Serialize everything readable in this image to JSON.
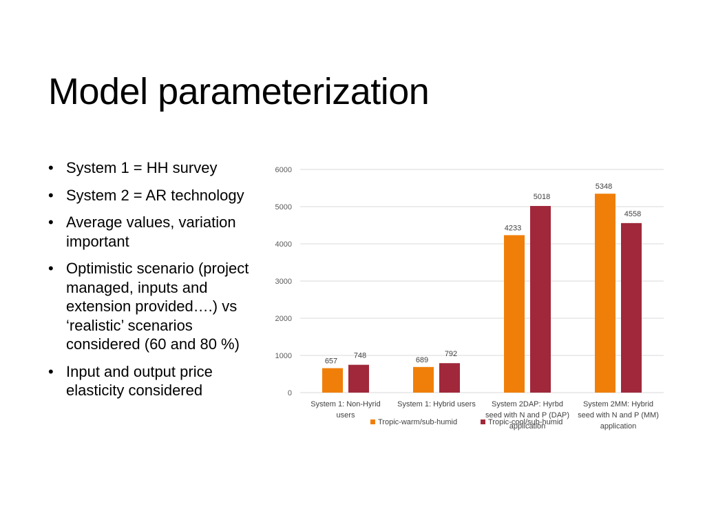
{
  "slide": {
    "title": "Model parameterization",
    "bullets": [
      "System 1 = HH survey",
      "System 2 = AR technology",
      "Average values, variation important",
      "Optimistic scenario (project managed, inputs and extension provided….) vs ‘realistic’ scenarios considered (60 and 80 %)",
      "Input and output price elasticity considered"
    ]
  },
  "chart_data": {
    "type": "bar",
    "title": "",
    "xlabel": "",
    "ylabel": "",
    "ylim": [
      0,
      6000
    ],
    "yticks": [
      0,
      1000,
      2000,
      3000,
      4000,
      5000,
      6000
    ],
    "grid": true,
    "legend_position": "bottom",
    "categories": [
      [
        "System 1: Non-Hyrid",
        "users"
      ],
      [
        "System 1: Hybrid users"
      ],
      [
        "System 2DAP: Hyrbd",
        "seed with N and P (DAP)",
        "application"
      ],
      [
        "System 2MM: Hybrid",
        "seed with N and P (MM)",
        "application"
      ]
    ],
    "series": [
      {
        "name": "Tropic-warm/sub-humid",
        "color": "#F07F09",
        "values": [
          657,
          689,
          4233,
          5348
        ]
      },
      {
        "name": "Tropic-cool/sub-humid",
        "color": "#A0283A",
        "values": [
          748,
          792,
          5018,
          4558
        ]
      }
    ]
  }
}
